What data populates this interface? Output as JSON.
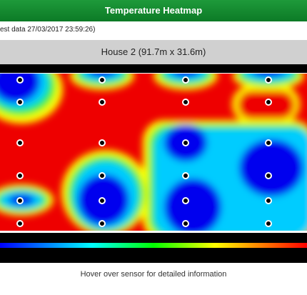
{
  "header": {
    "title": "Temperature Heatmap"
  },
  "timestamp": "est data 27/03/2017 23:59:26)",
  "house_label": "House 2 (91.7m x 31.6m)",
  "hint": "Hover over sensor for detailed information"
}
